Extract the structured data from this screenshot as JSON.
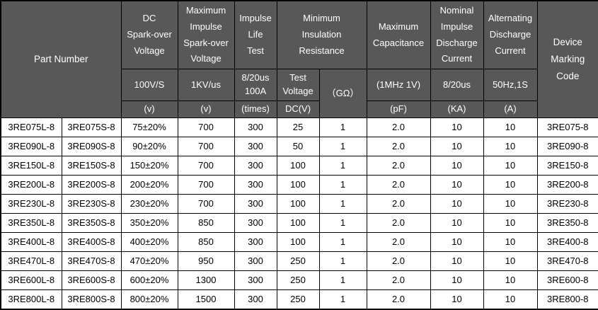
{
  "colors": {
    "header_bg": "#585858",
    "header_text": "#ffffff",
    "body_bg": "#ffffff",
    "body_text": "#000000",
    "border": "#000000"
  },
  "table": {
    "header": {
      "part_number": "Part Number",
      "dc_sparkover": {
        "title": "DC\nSpark-over\nVoltage",
        "condition": "100V/S",
        "unit": "(v)"
      },
      "max_impulse_sparkover": {
        "title": "Maximum\nImpulse\nSpark-over\nVoltage",
        "condition": "1KV/us",
        "unit": "(v)"
      },
      "impulse_life_test": {
        "title": "Impulse\nLife\nTest",
        "condition": "8/20us\n100A",
        "unit": "(times)"
      },
      "min_insulation_resistance": {
        "title": "Minimum\nInsulation\nResistance",
        "test_voltage": "Test\nVoltage",
        "test_voltage_unit": "DC(V)",
        "gohm": "（GΩ）"
      },
      "max_capacitance": {
        "title": "Maximum\nCapacitance",
        "condition": "(1MHz 1V)",
        "unit": "(pF)"
      },
      "nominal_impulse_discharge": {
        "title": "Nominal\nImpulse\nDischarge\nCurrent",
        "condition": "8/20us",
        "unit": "(KA)"
      },
      "alternating_discharge": {
        "title": "Alternating\nDischarge\nCurrent",
        "condition": "50Hz,1S",
        "unit": "(A)"
      },
      "device_marking_code": "Device\nMarking\nCode"
    },
    "rows": [
      [
        "3RE075L-8",
        "3RE075S-8",
        "75±20%",
        "700",
        "300",
        "25",
        "1",
        "2.0",
        "10",
        "10",
        "3RE075-8"
      ],
      [
        "3RE090L-8",
        "3RE090S-8",
        "90±20%",
        "700",
        "300",
        "50",
        "1",
        "2.0",
        "10",
        "10",
        "3RE090-8"
      ],
      [
        "3RE150L-8",
        "3RE150S-8",
        "150±20%",
        "700",
        "300",
        "100",
        "1",
        "2.0",
        "10",
        "10",
        "3RE150-8"
      ],
      [
        "3RE200L-8",
        "3RE200S-8",
        "200±20%",
        "700",
        "300",
        "100",
        "1",
        "2.0",
        "10",
        "10",
        "3RE200-8"
      ],
      [
        "3RE230L-8",
        "3RE230S-8",
        "230±20%",
        "700",
        "300",
        "100",
        "1",
        "2.0",
        "10",
        "10",
        "3RE230-8"
      ],
      [
        "3RE350L-8",
        "3RE350S-8",
        "350±20%",
        "850",
        "300",
        "100",
        "1",
        "2.0",
        "10",
        "10",
        "3RE350-8"
      ],
      [
        "3RE400L-8",
        "3RE400S-8",
        "400±20%",
        "850",
        "300",
        "100",
        "1",
        "2.0",
        "10",
        "10",
        "3RE400-8"
      ],
      [
        "3RE470L-8",
        "3RE470S-8",
        "470±20%",
        "950",
        "300",
        "250",
        "1",
        "2.0",
        "10",
        "10",
        "3RE470-8"
      ],
      [
        "3RE600L-8",
        "3RE600S-8",
        "600±20%",
        "1300",
        "300",
        "250",
        "1",
        "2.0",
        "10",
        "10",
        "3RE600-8"
      ],
      [
        "3RE800L-8",
        "3RE800S-8",
        "800±20%",
        "1500",
        "300",
        "250",
        "1",
        "2.0",
        "10",
        "10",
        "3RE800-8"
      ]
    ]
  }
}
